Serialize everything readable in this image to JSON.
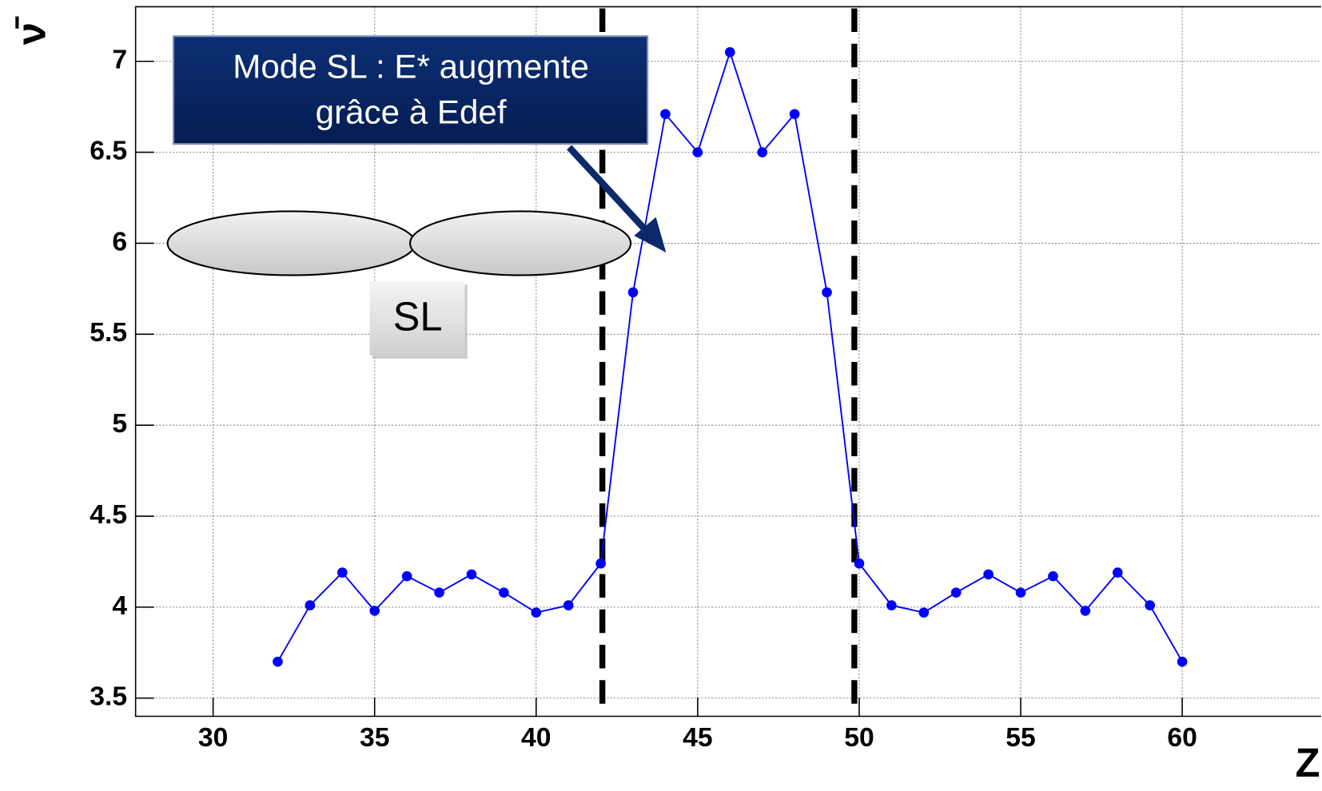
{
  "chart_data": {
    "type": "line",
    "xlabel": "Z",
    "ylabel": "ν̄",
    "x": [
      32,
      33,
      34,
      35,
      36,
      37,
      38,
      39,
      40,
      41,
      42,
      43,
      44,
      45,
      46,
      47,
      48,
      49,
      50,
      51,
      52,
      53,
      54,
      55,
      56,
      57,
      58,
      59,
      60
    ],
    "series": [
      {
        "color": "#0000ff",
        "values": [
          3.7,
          4.01,
          4.19,
          3.98,
          4.17,
          4.08,
          4.18,
          4.08,
          3.97,
          4.01,
          4.24,
          5.73,
          6.71,
          6.5,
          7.05,
          6.5,
          6.71,
          5.73,
          4.24,
          4.01,
          3.97,
          4.08,
          4.18,
          4.08,
          4.17,
          3.98,
          4.19,
          4.01,
          3.7
        ]
      }
    ],
    "xlim": [
      27.6,
      64.3
    ],
    "ylim": [
      3.4,
      7.3
    ],
    "xticks": [
      30,
      35,
      40,
      45,
      50,
      55,
      60
    ],
    "yticks": [
      3.5,
      4,
      4.5,
      5,
      5.5,
      6,
      6.5,
      7
    ],
    "grid": true,
    "vlines": [
      42.05,
      49.85
    ],
    "callout": [
      "Mode SL : E* augmente",
      "grâce à Edef"
    ],
    "shape_label": "SL"
  }
}
